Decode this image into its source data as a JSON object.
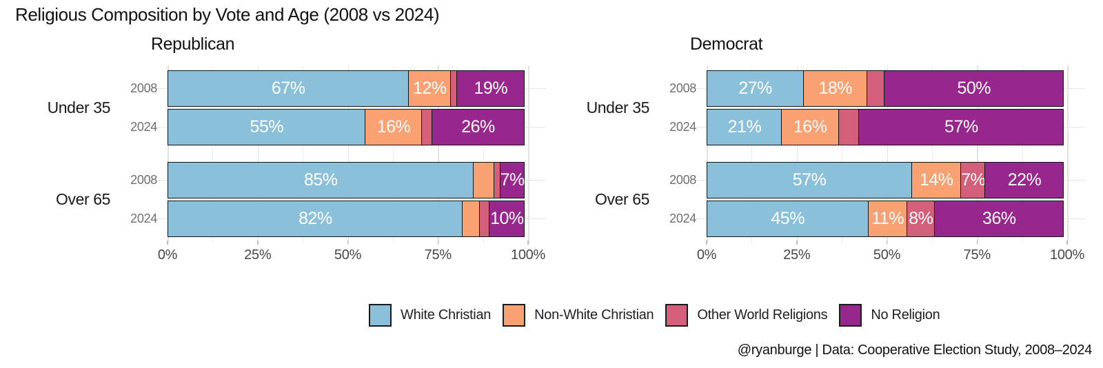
{
  "title": "Religious Composition by Vote and Age (2008 vs 2024)",
  "caption": "@ryanburge | Data: Cooperative Election Study, 2008–2024",
  "chart_data": {
    "type": "bar",
    "orientation": "horizontal",
    "stacked": true,
    "unit": "percent",
    "x_axis": {
      "tick_labels": [
        "0%",
        "25%",
        "50%",
        "75%",
        "100%"
      ],
      "tick_values": [
        0,
        25,
        50,
        75,
        100
      ],
      "range": [
        0,
        100
      ],
      "minor_grid_step": 12.5
    },
    "series": [
      {
        "name": "White Christian",
        "color": "#8bc0db"
      },
      {
        "name": "Non-White Christian",
        "color": "#f9a173"
      },
      {
        "name": "Other World Religions",
        "color": "#d45f7a"
      },
      {
        "name": "No Religion",
        "color": "#97278c"
      }
    ],
    "panels": [
      {
        "title": "Republican",
        "groups": [
          {
            "label": "Under 35",
            "rows": [
              {
                "year": "2008",
                "values": [
                  67,
                  12,
                  2,
                  19
                ],
                "labels": [
                  "67%",
                  "12%",
                  "",
                  "19%"
                ]
              },
              {
                "year": "2024",
                "values": [
                  55,
                  16,
                  3,
                  26
                ],
                "labels": [
                  "55%",
                  "16%",
                  "",
                  "26%"
                ]
              }
            ]
          },
          {
            "label": "Over 65",
            "rows": [
              {
                "year": "2008",
                "values": [
                  85,
                  6,
                  2,
                  7
                ],
                "labels": [
                  "85%",
                  "",
                  "",
                  "7%"
                ]
              },
              {
                "year": "2024",
                "values": [
                  82,
                  5,
                  3,
                  10
                ],
                "labels": [
                  "82%",
                  "",
                  "",
                  "10%"
                ]
              }
            ]
          }
        ]
      },
      {
        "title": "Democrat",
        "groups": [
          {
            "label": "Under 35",
            "rows": [
              {
                "year": "2008",
                "values": [
                  27,
                  18,
                  5,
                  50
                ],
                "labels": [
                  "27%",
                  "18%",
                  "",
                  "50%"
                ]
              },
              {
                "year": "2024",
                "values": [
                  21,
                  16,
                  6,
                  57
                ],
                "labels": [
                  "21%",
                  "16%",
                  "",
                  "57%"
                ]
              }
            ]
          },
          {
            "label": "Over 65",
            "rows": [
              {
                "year": "2008",
                "values": [
                  57,
                  14,
                  7,
                  22
                ],
                "labels": [
                  "57%",
                  "14%",
                  "7%",
                  "22%"
                ]
              },
              {
                "year": "2024",
                "values": [
                  45,
                  11,
                  8,
                  36
                ],
                "labels": [
                  "45%",
                  "11%",
                  "8%",
                  "36%"
                ]
              }
            ]
          }
        ]
      }
    ],
    "legend": [
      "White Christian",
      "Non-White Christian",
      "Other World Religions",
      "No Religion"
    ],
    "legend_position": "bottom",
    "grid": true,
    "background": "#ffffff"
  }
}
